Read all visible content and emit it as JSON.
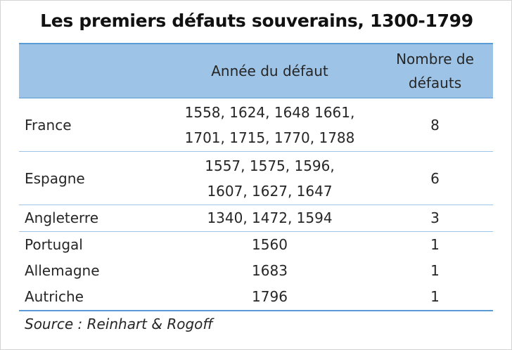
{
  "title": "Les premiers défauts souverains, 1300-1799",
  "table": {
    "headers": {
      "country": "",
      "year": "Année du défaut",
      "count_line1": "Nombre de",
      "count_line2": "défauts"
    },
    "rows": [
      {
        "country": "France",
        "years_line1": "1558, 1624, 1648 1661,",
        "years_line2": "1701, 1715, 1770, 1788",
        "count": "8"
      },
      {
        "country": "Espagne",
        "years_line1": "1557, 1575, 1596,",
        "years_line2": "1607, 1627, 1647",
        "count": "6"
      },
      {
        "country": "Angleterre",
        "years_line1": "1340, 1472, 1594",
        "count": "3"
      },
      {
        "country": "Portugal",
        "years_line1": "1560",
        "count": "1"
      },
      {
        "country": "Allemagne",
        "years_line1": "1683",
        "count": "1"
      },
      {
        "country": "Autriche",
        "years_line1": "1796",
        "count": "1"
      }
    ]
  },
  "source": "Source : Reinhart & Rogoff",
  "colors": {
    "header_fill": "#9dc3e6",
    "rule": "#5b9bd5"
  }
}
